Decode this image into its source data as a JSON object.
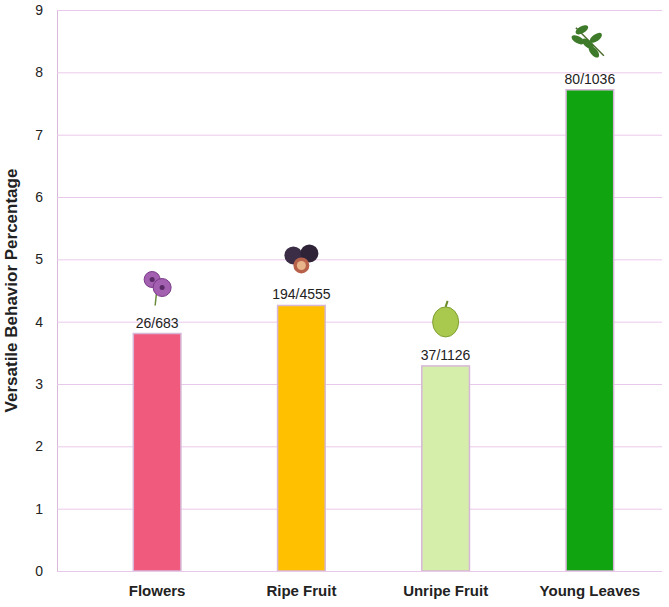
{
  "chart_data": {
    "type": "bar",
    "y_label": "Versatile Behavior Percentage",
    "categories": [
      "Flowers",
      "Ripe Fruit",
      "Unripe Fruit",
      "Young Leaves"
    ],
    "values": [
      3.81,
      4.26,
      3.29,
      7.72
    ],
    "value_labels": [
      "26/683",
      "194/4555",
      "37/1126",
      "80/1036"
    ],
    "colors": [
      "#ef5a7d",
      "#ffc000",
      "#d5efab",
      "#10a510"
    ],
    "ylim": [
      0,
      9
    ],
    "yticks": [
      0,
      1,
      2,
      3,
      4,
      5,
      6,
      7,
      8,
      9
    ],
    "grid": true,
    "data_labels": true
  }
}
